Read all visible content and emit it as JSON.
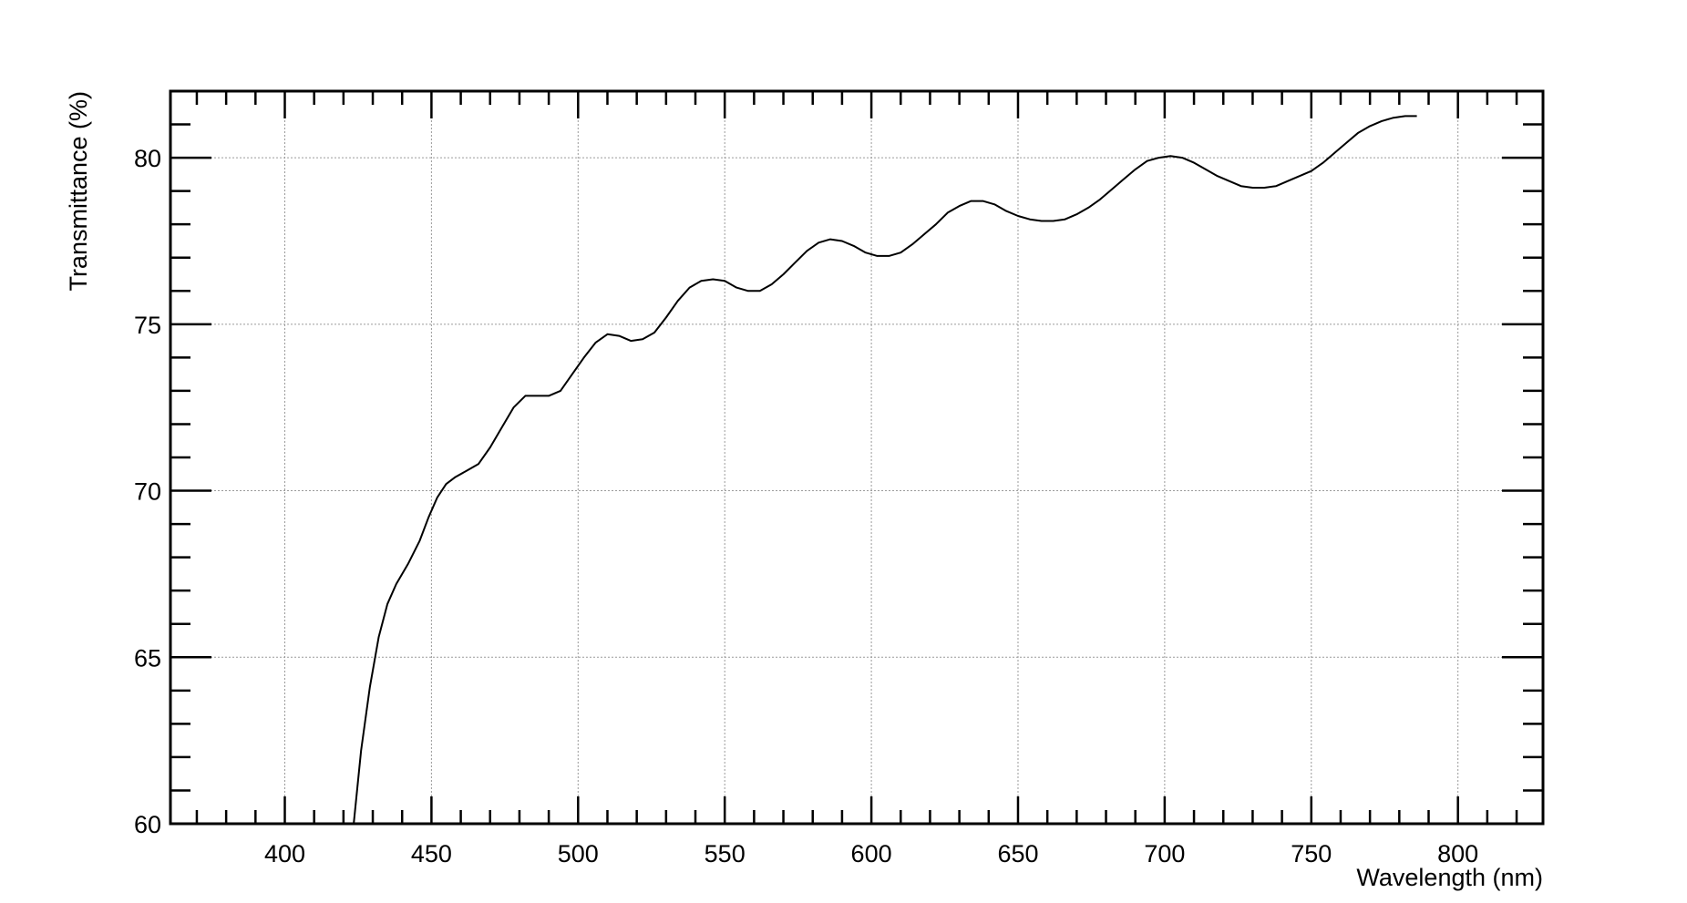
{
  "chart_data": {
    "type": "line",
    "title": "",
    "xlabel": "Wavelength (nm)",
    "ylabel": "Transmittance (%)",
    "xlim": [
      361,
      829
    ],
    "ylim": [
      60,
      82
    ],
    "grid": true,
    "xticks": [
      400,
      450,
      500,
      550,
      600,
      650,
      700,
      750,
      800
    ],
    "yticks": [
      60,
      65,
      70,
      75,
      80
    ],
    "xtick_labels": [
      "400",
      "450",
      "500",
      "550",
      "600",
      "650",
      "700",
      "750",
      "800"
    ],
    "ytick_labels": [
      "60",
      "65",
      "70",
      "75",
      "80"
    ],
    "series": [
      {
        "name": "Transmittance",
        "color": "#000000",
        "x": [
          423.5,
          426,
          429,
          432,
          435,
          438,
          442,
          446,
          449,
          452,
          455,
          458,
          462,
          466,
          470,
          474,
          478,
          482,
          486,
          490,
          494,
          498,
          502,
          506,
          510,
          514,
          518,
          522,
          526,
          530,
          534,
          538,
          542,
          546,
          550,
          554,
          558,
          562,
          566,
          570,
          574,
          578,
          582,
          586,
          590,
          594,
          598,
          602,
          606,
          610,
          614,
          618,
          622,
          626,
          630,
          634,
          638,
          642,
          646,
          650,
          654,
          658,
          662,
          666,
          670,
          674,
          678,
          682,
          686,
          690,
          694,
          698,
          702,
          706,
          710,
          714,
          718,
          722,
          726,
          730,
          734,
          738,
          742,
          746,
          750,
          754,
          758,
          762,
          766,
          770,
          774,
          778,
          782,
          786
        ],
        "y": [
          60.0,
          62.2,
          64.1,
          65.6,
          66.6,
          67.2,
          67.8,
          68.5,
          69.2,
          69.8,
          70.2,
          70.4,
          70.6,
          70.8,
          71.3,
          71.9,
          72.5,
          72.85,
          72.85,
          72.85,
          73.0,
          73.5,
          74.0,
          74.45,
          74.7,
          74.65,
          74.5,
          74.55,
          74.75,
          75.2,
          75.7,
          76.1,
          76.3,
          76.35,
          76.3,
          76.1,
          76.0,
          76.0,
          76.2,
          76.5,
          76.85,
          77.2,
          77.45,
          77.55,
          77.5,
          77.35,
          77.15,
          77.05,
          77.05,
          77.15,
          77.4,
          77.7,
          78.0,
          78.35,
          78.55,
          78.7,
          78.7,
          78.6,
          78.4,
          78.25,
          78.15,
          78.1,
          78.1,
          78.15,
          78.3,
          78.5,
          78.75,
          79.05,
          79.35,
          79.65,
          79.9,
          80.0,
          80.05,
          80.0,
          79.85,
          79.65,
          79.45,
          79.3,
          79.15,
          79.1,
          79.1,
          79.15,
          79.3,
          79.45,
          79.6,
          79.85,
          80.15,
          80.45,
          80.75,
          80.95,
          81.1,
          81.2,
          81.25,
          81.25
        ]
      }
    ]
  }
}
